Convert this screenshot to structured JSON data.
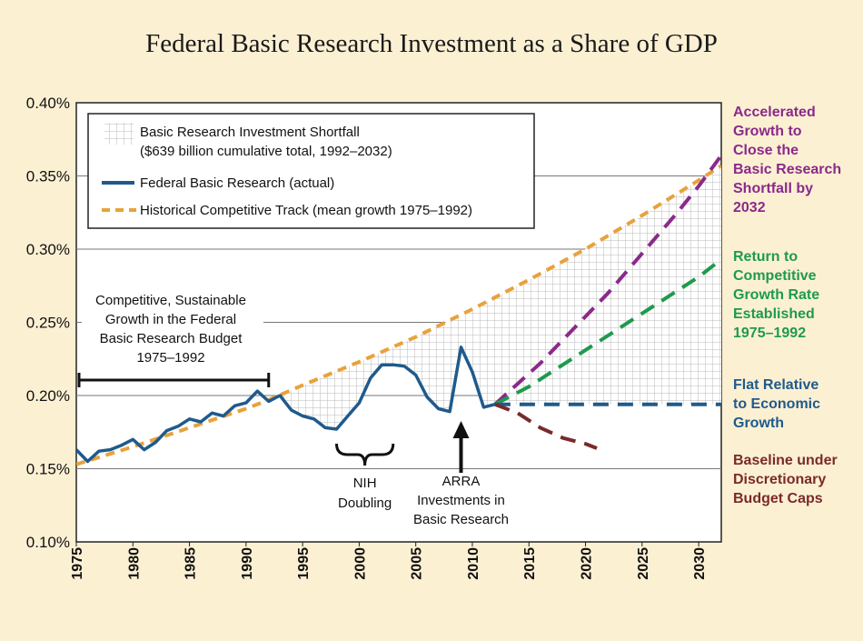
{
  "chart_data": {
    "type": "line",
    "title": "Federal Basic Research Investment as a Share of GDP",
    "xlabel": "",
    "ylabel": "",
    "xlim": [
      1975,
      2032
    ],
    "ylim": [
      0.1,
      0.4
    ],
    "x_ticks": [
      1975,
      1980,
      1985,
      1990,
      1995,
      2000,
      2005,
      2010,
      2015,
      2020,
      2025,
      2030
    ],
    "x_tick_labels": [
      "1975",
      "1980",
      "1985",
      "1990",
      "1995",
      "2000",
      "2005",
      "2010",
      "2015",
      "2020",
      "2025",
      "2030"
    ],
    "y_ticks": [
      0.1,
      0.15,
      0.2,
      0.25,
      0.3,
      0.35,
      0.4
    ],
    "y_tick_labels": [
      "0.10%",
      "0.15%",
      "0.20%",
      "0.25%",
      "0.30%",
      "0.35%",
      "0.40%"
    ],
    "legend": {
      "position": "top-left",
      "entries": [
        {
          "label_line1": "Basic Research Investment Shortfall",
          "label_line2": "($639 billion cumulative total, 1992–2032)",
          "style": "grid"
        },
        {
          "label": "Federal Basic Research (actual)",
          "style": "solid",
          "color": "#1f5a8c"
        },
        {
          "label": "Historical Competitive Track (mean growth 1975–1992)",
          "style": "dashed",
          "color": "#e8a23a"
        }
      ]
    },
    "series": [
      {
        "name": "Federal Basic Research (actual)",
        "style": "solid",
        "color": "#1f5a8c",
        "x": [
          1975,
          1976,
          1977,
          1978,
          1979,
          1980,
          1981,
          1982,
          1983,
          1984,
          1985,
          1986,
          1987,
          1988,
          1989,
          1990,
          1991,
          1992,
          1993,
          1994,
          1995,
          1996,
          1997,
          1998,
          1999,
          2000,
          2001,
          2002,
          2003,
          2004,
          2005,
          2006,
          2007,
          2008,
          2009,
          2010,
          2011,
          2012
        ],
        "y": [
          0.163,
          0.155,
          0.162,
          0.163,
          0.166,
          0.17,
          0.163,
          0.168,
          0.176,
          0.179,
          0.184,
          0.182,
          0.188,
          0.186,
          0.193,
          0.195,
          0.203,
          0.196,
          0.2,
          0.19,
          0.186,
          0.184,
          0.178,
          0.177,
          0.186,
          0.195,
          0.212,
          0.221,
          0.221,
          0.22,
          0.214,
          0.199,
          0.191,
          0.189,
          0.233,
          0.216,
          0.192,
          0.194
        ]
      },
      {
        "name": "Historical Competitive Track (mean growth 1975–1992)",
        "style": "dashed",
        "color": "#e8a23a",
        "x": [
          1975,
          1980,
          1985,
          1990,
          1992,
          1995,
          2000,
          2005,
          2010,
          2015,
          2020,
          2025,
          2030,
          2032
        ],
        "y": [
          0.153,
          0.165,
          0.178,
          0.191,
          0.197,
          0.207,
          0.223,
          0.24,
          0.259,
          0.279,
          0.3,
          0.323,
          0.347,
          0.357
        ]
      },
      {
        "name": "Accelerated Growth to Close the Basic Research Shortfall by 2032",
        "style": "dashed",
        "color": "#8a2a8a",
        "x": [
          2012,
          2014,
          2016,
          2018,
          2020,
          2022,
          2024,
          2026,
          2028,
          2030,
          2032
        ],
        "y": [
          0.194,
          0.208,
          0.222,
          0.238,
          0.254,
          0.27,
          0.288,
          0.306,
          0.324,
          0.343,
          0.364
        ]
      },
      {
        "name": "Return to Competitive Growth Rate Established 1975–1992",
        "style": "dashed",
        "color": "#1e9a4e",
        "x": [
          2012,
          2015,
          2020,
          2025,
          2030,
          2032
        ],
        "y": [
          0.194,
          0.206,
          0.231,
          0.256,
          0.281,
          0.293
        ]
      },
      {
        "name": "Flat Relative to Economic Growth",
        "style": "dashed",
        "color": "#1f5a8c",
        "x": [
          2012,
          2032
        ],
        "y": [
          0.194,
          0.194
        ]
      },
      {
        "name": "Baseline under Discretionary Budget Caps",
        "style": "dashed",
        "color": "#7a2a2a",
        "x": [
          2012,
          2014,
          2016,
          2018,
          2020,
          2021
        ],
        "y": [
          0.194,
          0.188,
          0.178,
          0.171,
          0.167,
          0.164
        ]
      }
    ],
    "annotations": {
      "competitive": [
        "Competitive, Sustainable",
        "Growth in the Federal",
        "Basic Research Budget",
        "1975–1992"
      ],
      "competitive_range": [
        1975,
        1992
      ],
      "nih": [
        "NIH",
        "Doubling"
      ],
      "nih_range": [
        1998,
        2003
      ],
      "arra": [
        "ARRA",
        "Investments in",
        "Basic Research"
      ],
      "arra_year": 2009
    },
    "side_labels": {
      "accelerated": {
        "lines": [
          "Accelerated",
          "Growth to",
          "Close the",
          "Basic Research",
          "Shortfall by",
          "2032"
        ],
        "color": "#8a2a8a"
      },
      "return": {
        "lines": [
          "Return to",
          "Competitive",
          "Growth Rate",
          "Established",
          "1975–1992"
        ],
        "color": "#1e9a4e"
      },
      "flat": {
        "lines": [
          "Flat Relative",
          "to Economic",
          "Growth"
        ],
        "color": "#1f5a8c"
      },
      "baseline": {
        "lines": [
          "Baseline under",
          "Discretionary",
          "Budget Caps"
        ],
        "color": "#7a2a2a"
      }
    }
  }
}
